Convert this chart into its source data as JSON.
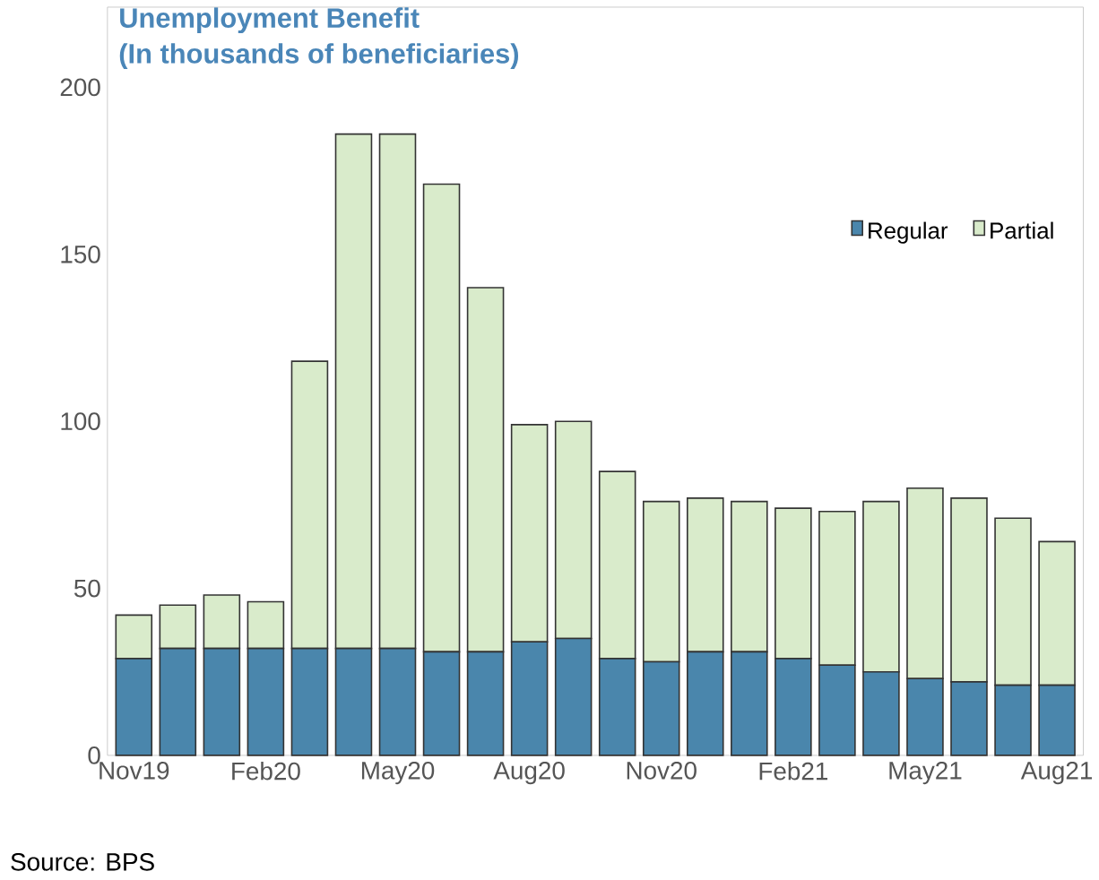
{
  "chart_data": {
    "type": "bar",
    "stacked": true,
    "title": "Unemployment Benefit\n(In thousands of beneficiaries)",
    "categories": [
      "Nov19",
      null,
      null,
      "Feb20",
      null,
      null,
      "May20",
      null,
      null,
      "Aug20",
      null,
      null,
      "Nov20",
      null,
      null,
      "Feb21",
      null,
      null,
      "May21",
      null,
      null,
      "Aug21"
    ],
    "series": [
      {
        "name": "Regular",
        "color": "#4a86ac",
        "values": [
          29,
          32,
          32,
          32,
          32,
          32,
          32,
          31,
          31,
          34,
          35,
          29,
          28,
          31,
          31,
          29,
          27,
          25,
          23,
          22,
          21,
          21
        ]
      },
      {
        "name": "Partial",
        "color": "#d9ebcb",
        "values": [
          13,
          13,
          16,
          14,
          86,
          154,
          154,
          140,
          109,
          65,
          65,
          56,
          48,
          46,
          45,
          45,
          46,
          51,
          57,
          55,
          50,
          43
        ]
      }
    ],
    "ylim": [
      0,
      224
    ],
    "yticks": [
      0,
      50,
      100,
      150,
      200
    ],
    "grid": false,
    "legend": "right",
    "annotations": [
      "Source: BPS"
    ]
  }
}
